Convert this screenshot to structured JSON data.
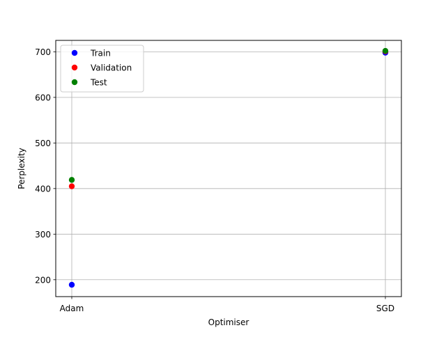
{
  "chart_data": {
    "type": "scatter",
    "title": "",
    "xlabel": "Optimiser",
    "ylabel": "Perplexity",
    "categories": [
      "Adam",
      "SGD"
    ],
    "ylim": [
      163,
      725
    ],
    "yticks": [
      200,
      300,
      400,
      500,
      600,
      700
    ],
    "grid": true,
    "legend_position": "top-left",
    "series": [
      {
        "name": "Train",
        "color": "#0000ff",
        "values": [
          189,
          698
        ]
      },
      {
        "name": "Validation",
        "color": "#ff0000",
        "values": [
          405,
          701
        ]
      },
      {
        "name": "Test",
        "color": "#008000",
        "values": [
          419,
          702
        ]
      }
    ]
  }
}
